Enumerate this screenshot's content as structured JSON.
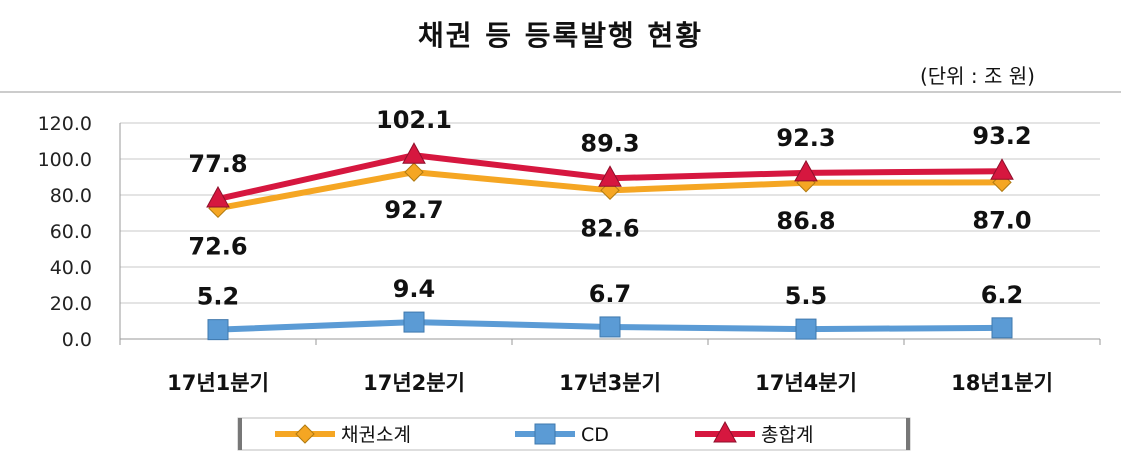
{
  "title": "채권 등 등록발행 현황",
  "unit": "(단위 : 조 원)",
  "chart_data": {
    "type": "line",
    "title": "채권 등 등록발행 현황",
    "categories": [
      "17년1분기",
      "17년2분기",
      "17년3분기",
      "17년4분기",
      "18년1분기"
    ],
    "ylim": [
      0,
      120
    ],
    "yticks": [
      "0.0",
      "20.0",
      "40.0",
      "60.0",
      "80.0",
      "100.0",
      "120.0"
    ],
    "grid": true,
    "legend_position": "bottom",
    "series": [
      {
        "name": "채권소계",
        "values": [
          72.6,
          92.7,
          82.6,
          86.8,
          87.0
        ],
        "labels": [
          "72.6",
          "92.7",
          "82.6",
          "86.8",
          "87.0"
        ],
        "color": "#F5A623",
        "marker": "diamond"
      },
      {
        "name": "CD",
        "values": [
          5.2,
          9.4,
          6.7,
          5.5,
          6.2
        ],
        "labels": [
          "5.2",
          "9.4",
          "6.7",
          "5.5",
          "6.2"
        ],
        "color": "#5B9BD5",
        "marker": "square"
      },
      {
        "name": "총합계",
        "values": [
          77.8,
          102.1,
          89.3,
          92.3,
          93.2
        ],
        "labels": [
          "77.8",
          "102.1",
          "89.3",
          "92.3",
          "93.2"
        ],
        "color": "#D6173F",
        "marker": "triangle"
      }
    ]
  }
}
